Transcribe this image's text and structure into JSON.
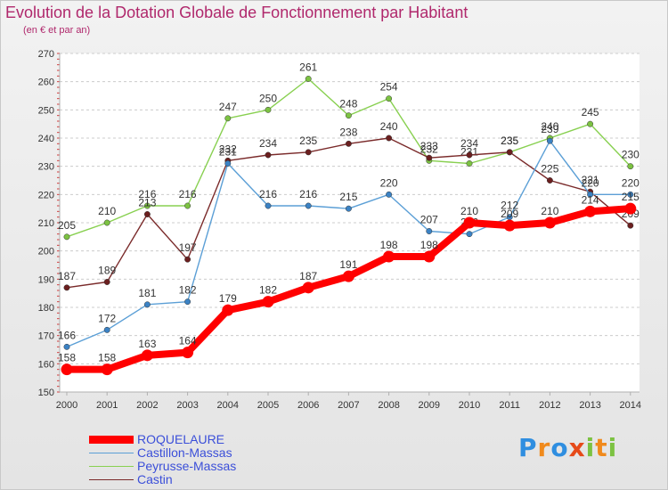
{
  "header": {
    "title": "Evolution de la Dotation Globale de Fonctionnement par Habitant",
    "subtitle": "(en € et par an)"
  },
  "logo": {
    "letters": [
      "P",
      "r",
      "o",
      "x",
      "i",
      "t",
      "i"
    ],
    "colors": [
      "#2f8ee0",
      "#f08a1c",
      "#2f8ee0",
      "#e64a19",
      "#7cc242",
      "#f08a1c",
      "#7cc242"
    ]
  },
  "colors": {
    "title": "#b0286c",
    "axis_labels": "#333333",
    "legend_text": "#3b4fd9"
  },
  "chart_data": {
    "type": "line",
    "title": "Evolution de la Dotation Globale de Fonctionnement par Habitant",
    "subtitle": "(en € et par an)",
    "xlabel": "",
    "ylabel": "",
    "x": [
      "2000",
      "2001",
      "2002",
      "2003",
      "2004",
      "2005",
      "2006",
      "2007",
      "2008",
      "2009",
      "2010",
      "2011",
      "2012",
      "2013",
      "2014"
    ],
    "ylim": [
      150,
      270
    ],
    "yticks": [
      150,
      160,
      170,
      180,
      190,
      200,
      210,
      220,
      230,
      240,
      250,
      260,
      270
    ],
    "grid": "horizontal dashed",
    "legend_position": "bottom-left",
    "series": [
      {
        "name": "Peyrusse-Massas",
        "color": "#88d050",
        "marker": "#7cc242",
        "values": [
          205,
          210,
          216,
          216,
          247,
          250,
          261,
          248,
          254,
          232,
          231,
          235,
          240,
          245,
          230
        ]
      },
      {
        "name": "Castin",
        "color": "#7a2a2a",
        "marker": "#6b1f1f",
        "values": [
          187,
          189,
          213,
          197,
          232,
          234,
          235,
          238,
          240,
          233,
          234,
          235,
          225,
          221,
          209
        ]
      },
      {
        "name": "Castillon-Massas",
        "color": "#5b9fd6",
        "marker": "#3b82c4",
        "values": [
          166,
          172,
          181,
          182,
          231,
          216,
          216,
          215,
          220,
          207,
          206,
          212,
          239,
          220,
          220
        ]
      },
      {
        "name": "ROQUELAURE",
        "color": "#ff0000",
        "marker": "#ff0000",
        "values": [
          158,
          158,
          163,
          164,
          179,
          182,
          187,
          191,
          198,
          198,
          210,
          209,
          210,
          214,
          215
        ]
      }
    ],
    "legend": [
      "ROQUELAURE",
      "Castillon-Massas",
      "Peyrusse-Massas",
      "Castin"
    ]
  }
}
